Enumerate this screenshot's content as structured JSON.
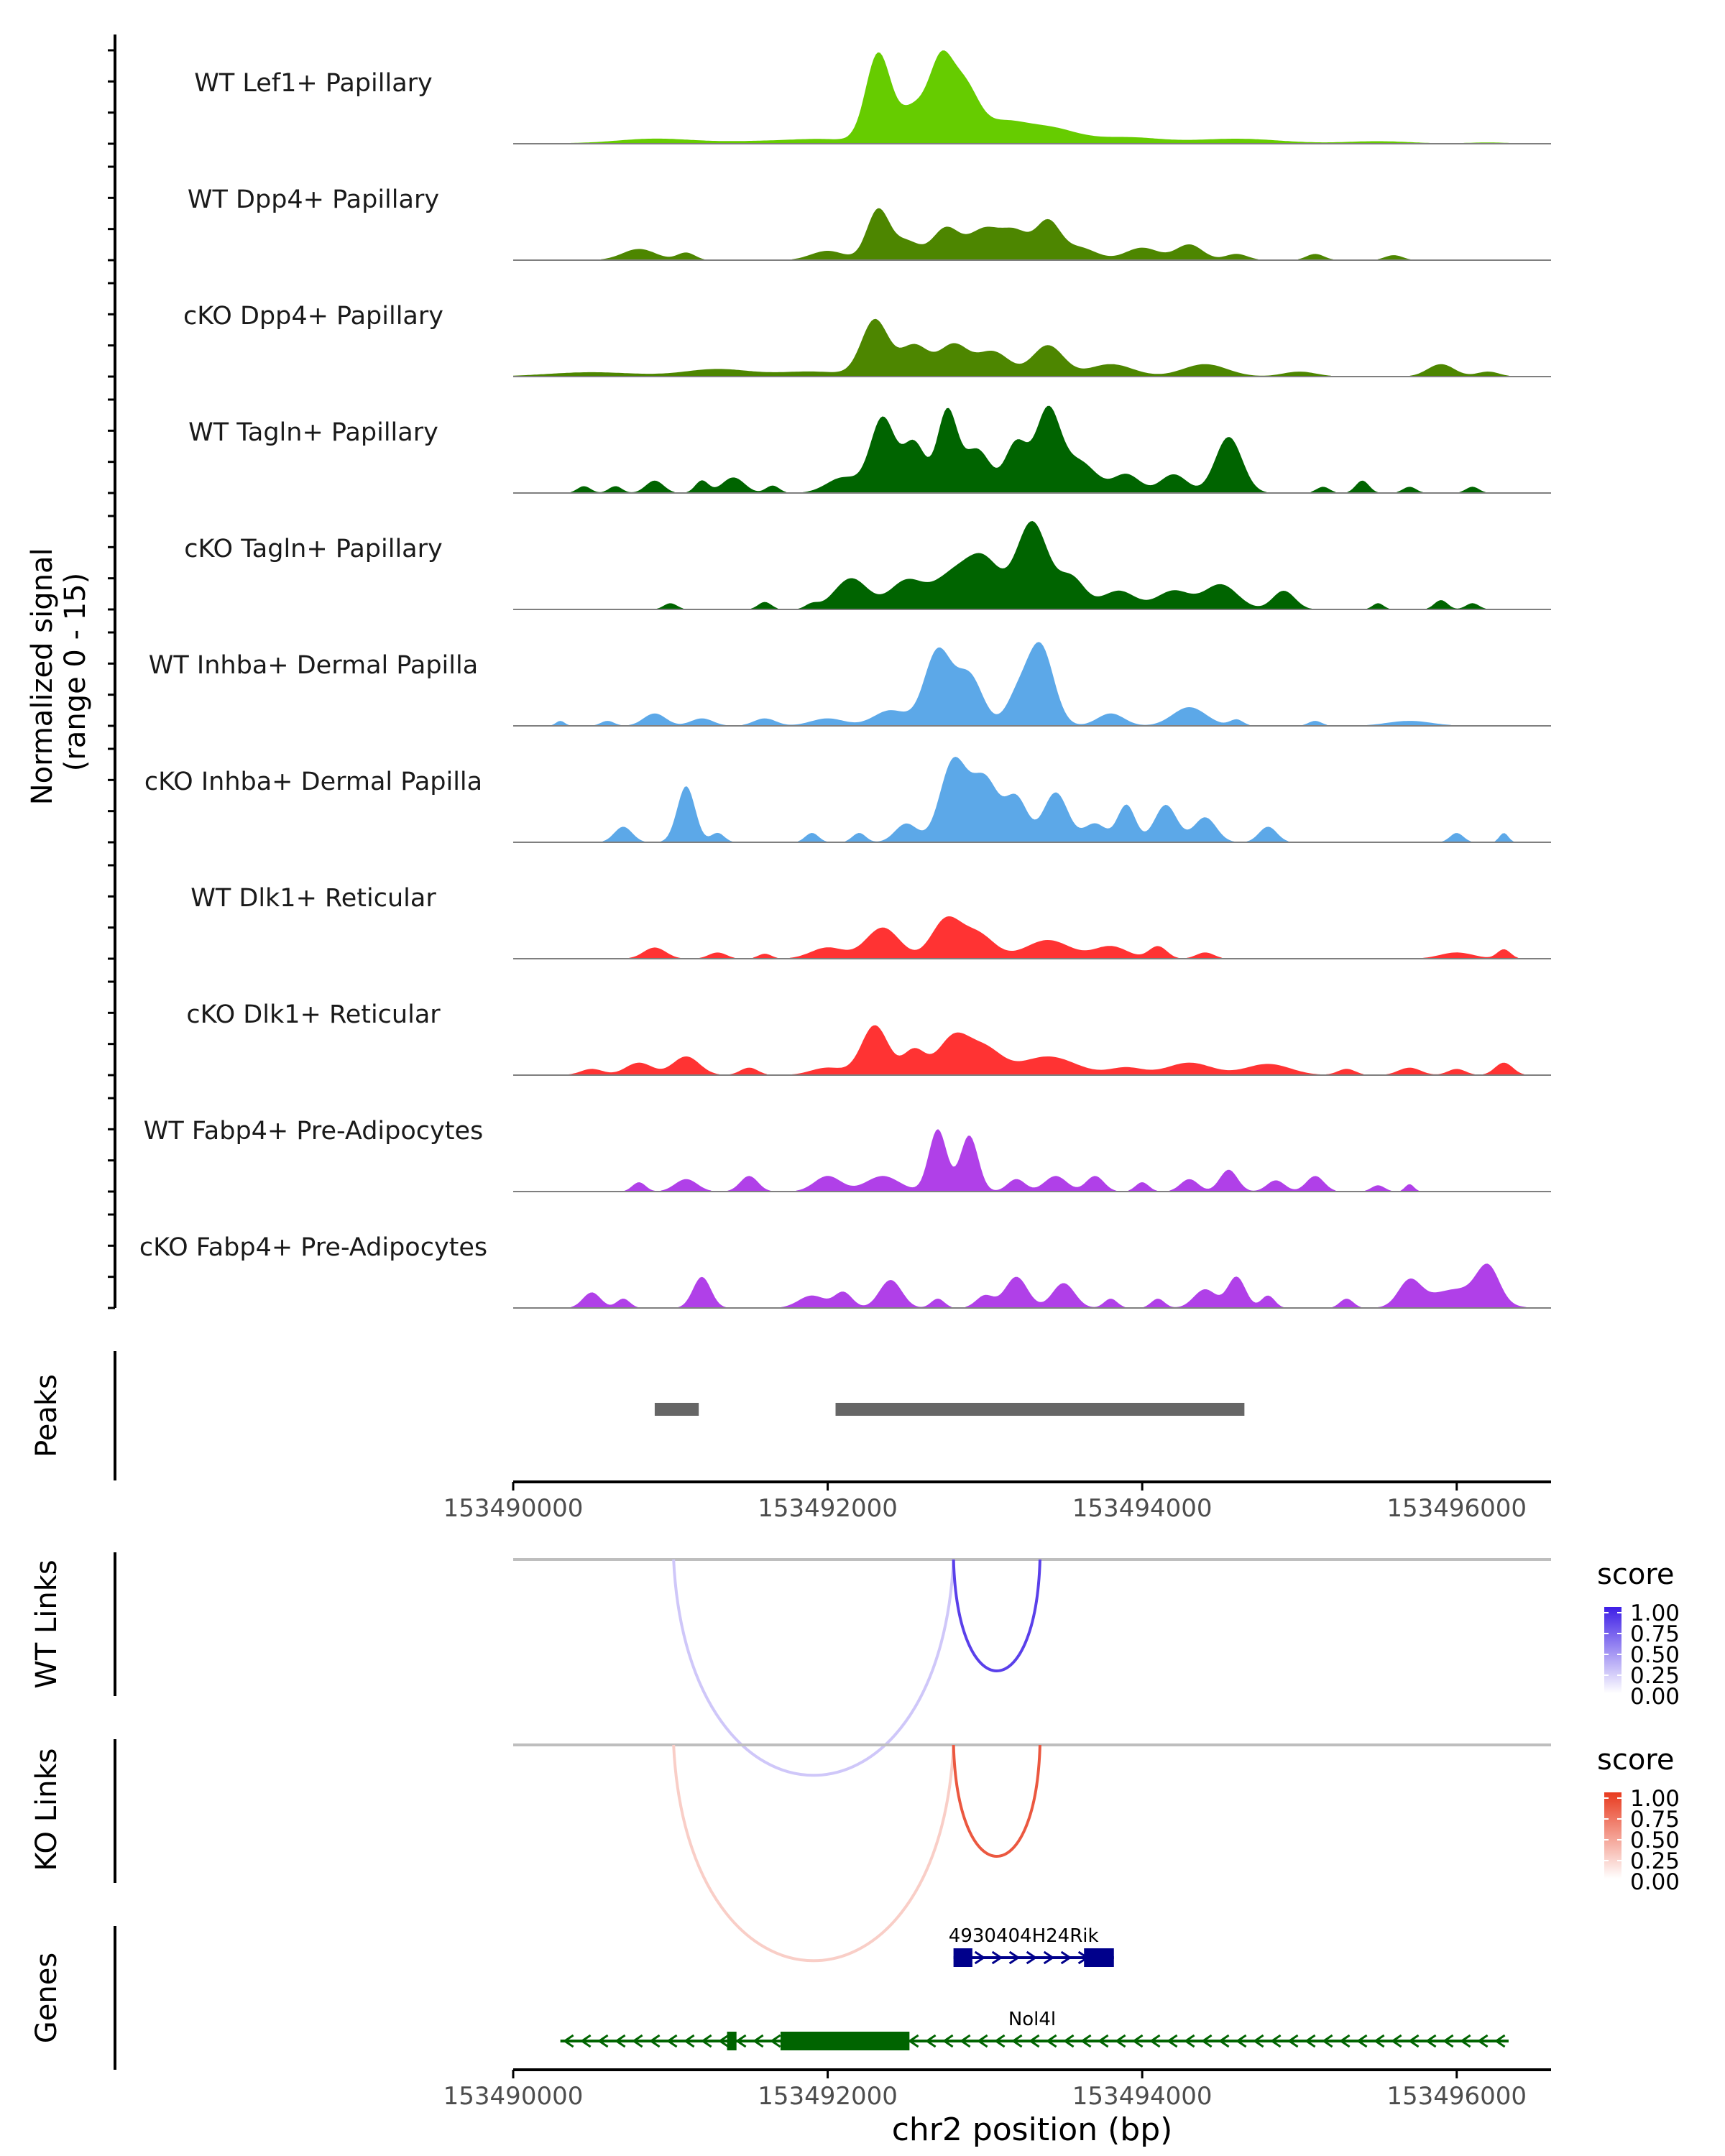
{
  "chart_data": {
    "type": "area",
    "title": "",
    "signal_axis_label_line1": "Normalized signal",
    "signal_axis_label_line2": "(range 0 - 15)",
    "y_range": [
      0,
      15
    ],
    "x_range": [
      153490000,
      153496600
    ],
    "x_ticks": [
      153490000,
      153492000,
      153494000,
      153496000
    ],
    "x_tick_labels": [
      "153490000",
      "153492000",
      "153494000",
      "153496000"
    ],
    "xlabel": "chr2 position (bp)",
    "tracks": [
      {
        "name": "WT Lef1+ Papillary",
        "color": "#66cc00",
        "peaks": [
          [
            153490000,
            0.1,
            400
          ],
          [
            153490900,
            0.8,
            350
          ],
          [
            153491600,
            0.4,
            400
          ],
          [
            153492000,
            0.6,
            300
          ],
          [
            153492320,
            14,
            110
          ],
          [
            153492560,
            6,
            150
          ],
          [
            153492720,
            10,
            100
          ],
          [
            153492860,
            9,
            130
          ],
          [
            153493100,
            3,
            200
          ],
          [
            153493400,
            2.5,
            250
          ],
          [
            153493900,
            1,
            300
          ],
          [
            153494600,
            0.8,
            400
          ],
          [
            153495500,
            0.4,
            300
          ],
          [
            153496200,
            0.2,
            200
          ]
        ]
      },
      {
        "name": "WT Dpp4+ Papillary",
        "color": "#4d8600",
        "peaks": [
          [
            153490800,
            1.8,
            150
          ],
          [
            153491100,
            1.2,
            80
          ],
          [
            153492000,
            1.5,
            150
          ],
          [
            153492320,
            8,
            100
          ],
          [
            153492500,
            3,
            120
          ],
          [
            153492750,
            5,
            120
          ],
          [
            153493000,
            5,
            150
          ],
          [
            153493200,
            4,
            120
          ],
          [
            153493400,
            6,
            110
          ],
          [
            153493600,
            2,
            150
          ],
          [
            153494000,
            2,
            150
          ],
          [
            153494300,
            2.5,
            120
          ],
          [
            153494600,
            1,
            100
          ],
          [
            153495100,
            1,
            80
          ],
          [
            153495600,
            0.8,
            80
          ]
        ]
      },
      {
        "name": "cKO Dpp4+ Papillary",
        "color": "#4d8600",
        "peaks": [
          [
            153490500,
            0.7,
            400
          ],
          [
            153491300,
            1.2,
            300
          ],
          [
            153491900,
            0.8,
            300
          ],
          [
            153492300,
            9,
            120
          ],
          [
            153492550,
            5,
            130
          ],
          [
            153492800,
            5,
            130
          ],
          [
            153493050,
            4,
            150
          ],
          [
            153493400,
            5,
            140
          ],
          [
            153493800,
            2,
            200
          ],
          [
            153494400,
            2,
            200
          ],
          [
            153495000,
            0.8,
            150
          ],
          [
            153495900,
            2,
            120
          ],
          [
            153496200,
            0.8,
            100
          ]
        ]
      },
      {
        "name": "WT Tagln+ Papillary",
        "color": "#006400",
        "peaks": [
          [
            153490450,
            1.1,
            60
          ],
          [
            153490650,
            1.1,
            60
          ],
          [
            153490900,
            2,
            80
          ],
          [
            153491200,
            2,
            60
          ],
          [
            153491400,
            2.5,
            100
          ],
          [
            153491650,
            1.2,
            60
          ],
          [
            153492100,
            2.5,
            150
          ],
          [
            153492350,
            12,
            110
          ],
          [
            153492550,
            8,
            100
          ],
          [
            153492760,
            13,
            90
          ],
          [
            153492950,
            7,
            120
          ],
          [
            153493200,
            8,
            100
          ],
          [
            153493400,
            13,
            110
          ],
          [
            153493600,
            5,
            150
          ],
          [
            153493900,
            3,
            120
          ],
          [
            153494200,
            3,
            120
          ],
          [
            153494550,
            9,
            120
          ],
          [
            153495150,
            1,
            60
          ],
          [
            153495400,
            2,
            60
          ],
          [
            153495700,
            1,
            60
          ],
          [
            153496100,
            1,
            60
          ]
        ]
      },
      {
        "name": "cKO Tagln+ Papillary",
        "color": "#006400",
        "peaks": [
          [
            153491000,
            1,
            60
          ],
          [
            153491600,
            1.2,
            60
          ],
          [
            153491900,
            0.8,
            60
          ],
          [
            153492150,
            5,
            150
          ],
          [
            153492500,
            4.5,
            150
          ],
          [
            153492800,
            5.5,
            180
          ],
          [
            153493000,
            7,
            150
          ],
          [
            153493300,
            14,
            140
          ],
          [
            153493550,
            5,
            120
          ],
          [
            153493850,
            3,
            150
          ],
          [
            153494200,
            3,
            150
          ],
          [
            153494500,
            4,
            150
          ],
          [
            153494900,
            3,
            100
          ],
          [
            153495500,
            1,
            50
          ],
          [
            153495900,
            1.5,
            60
          ],
          [
            153496100,
            1,
            60
          ]
        ]
      },
      {
        "name": "WT Inhba+ Dermal Papilla",
        "color": "#5ca8e8",
        "peaks": [
          [
            153490300,
            0.8,
            40
          ],
          [
            153490600,
            0.8,
            60
          ],
          [
            153490900,
            2,
            100
          ],
          [
            153491200,
            1.2,
            100
          ],
          [
            153491600,
            1.2,
            100
          ],
          [
            153492000,
            1.2,
            150
          ],
          [
            153492400,
            2.5,
            150
          ],
          [
            153492700,
            12,
            120
          ],
          [
            153492900,
            8,
            120
          ],
          [
            153493200,
            4,
            100
          ],
          [
            153493350,
            13,
            120
          ],
          [
            153493800,
            2,
            120
          ],
          [
            153494300,
            3,
            150
          ],
          [
            153494600,
            1,
            60
          ],
          [
            153495100,
            0.8,
            60
          ],
          [
            153495700,
            0.8,
            200
          ]
        ]
      },
      {
        "name": "cKO Inhba+ Dermal Papilla",
        "color": "#5ca8e8",
        "peaks": [
          [
            153490700,
            2.5,
            80
          ],
          [
            153491100,
            9,
            80
          ],
          [
            153491300,
            1.5,
            60
          ],
          [
            153491900,
            1.5,
            60
          ],
          [
            153492200,
            1.5,
            60
          ],
          [
            153492500,
            3,
            100
          ],
          [
            153492800,
            13,
            120
          ],
          [
            153493000,
            10,
            120
          ],
          [
            153493200,
            7,
            100
          ],
          [
            153493450,
            8,
            110
          ],
          [
            153493700,
            3,
            100
          ],
          [
            153493900,
            6,
            80
          ],
          [
            153494150,
            6,
            100
          ],
          [
            153494400,
            4,
            100
          ],
          [
            153494800,
            2.5,
            80
          ],
          [
            153496000,
            1.5,
            60
          ],
          [
            153496300,
            1.5,
            40
          ]
        ]
      },
      {
        "name": "WT Dlk1+ Reticular",
        "color": "#ff3333",
        "peaks": [
          [
            153490900,
            1.8,
            100
          ],
          [
            153491300,
            1,
            80
          ],
          [
            153491600,
            0.8,
            60
          ],
          [
            153492000,
            1.8,
            150
          ],
          [
            153492350,
            5,
            150
          ],
          [
            153492750,
            6,
            130
          ],
          [
            153492950,
            4,
            150
          ],
          [
            153493400,
            3,
            200
          ],
          [
            153493800,
            2,
            150
          ],
          [
            153494100,
            2,
            80
          ],
          [
            153494400,
            1,
            80
          ],
          [
            153496000,
            1,
            150
          ],
          [
            153496300,
            1.5,
            60
          ]
        ]
      },
      {
        "name": "cKO Dlk1+ Reticular",
        "color": "#ff3333",
        "peaks": [
          [
            153490500,
            1,
            100
          ],
          [
            153490800,
            2,
            120
          ],
          [
            153491100,
            3,
            120
          ],
          [
            153491500,
            1.2,
            80
          ],
          [
            153492000,
            1.2,
            150
          ],
          [
            153492300,
            8,
            120
          ],
          [
            153492550,
            4,
            100
          ],
          [
            153492800,
            6,
            140
          ],
          [
            153493000,
            4,
            150
          ],
          [
            153493400,
            3,
            250
          ],
          [
            153493900,
            1.2,
            150
          ],
          [
            153494300,
            2,
            200
          ],
          [
            153494800,
            1.8,
            200
          ],
          [
            153495300,
            1,
            80
          ],
          [
            153495700,
            1.2,
            100
          ],
          [
            153496000,
            1,
            80
          ],
          [
            153496300,
            2,
            80
          ]
        ]
      },
      {
        "name": "WT Fabp4+ Pre-Adipocytes",
        "color": "#b040e8",
        "peaks": [
          [
            153490800,
            1.5,
            60
          ],
          [
            153491100,
            2,
            100
          ],
          [
            153491500,
            2.5,
            80
          ],
          [
            153492000,
            2.5,
            120
          ],
          [
            153492350,
            2.5,
            150
          ],
          [
            153492700,
            10,
            80
          ],
          [
            153492900,
            9,
            80
          ],
          [
            153493200,
            2,
            80
          ],
          [
            153493450,
            2.5,
            100
          ],
          [
            153493700,
            2.5,
            80
          ],
          [
            153494000,
            1.5,
            60
          ],
          [
            153494300,
            2,
            80
          ],
          [
            153494550,
            3.5,
            80
          ],
          [
            153494850,
            1.8,
            80
          ],
          [
            153495100,
            2.5,
            80
          ],
          [
            153495500,
            1,
            60
          ],
          [
            153495700,
            1.2,
            40
          ]
        ]
      },
      {
        "name": "cKO Fabp4+ Pre-Adipocytes",
        "color": "#b040e8",
        "peaks": [
          [
            153490500,
            2.5,
            80
          ],
          [
            153490700,
            1.5,
            60
          ],
          [
            153491200,
            5,
            80
          ],
          [
            153491900,
            2,
            120
          ],
          [
            153492100,
            2.5,
            80
          ],
          [
            153492400,
            4.5,
            100
          ],
          [
            153492700,
            1.5,
            60
          ],
          [
            153493000,
            2,
            80
          ],
          [
            153493200,
            5,
            100
          ],
          [
            153493500,
            4,
            100
          ],
          [
            153493800,
            1.5,
            60
          ],
          [
            153494100,
            1.5,
            60
          ],
          [
            153494400,
            3,
            100
          ],
          [
            153494600,
            5,
            80
          ],
          [
            153494800,
            2,
            60
          ],
          [
            153495300,
            1.5,
            60
          ],
          [
            153495700,
            4,
            100
          ],
          [
            153496000,
            3,
            250
          ],
          [
            153496200,
            5.5,
            100
          ]
        ]
      }
    ],
    "peaks_track": {
      "label": "Peaks",
      "regions": [
        [
          153490900,
          153491180
        ],
        [
          153492050,
          153494650
        ]
      ]
    },
    "links_tracks": [
      {
        "label": "WT Links",
        "legend_title": "score",
        "legend_ticks": [
          "1.00",
          "0.75",
          "0.50",
          "0.25",
          "0.00"
        ],
        "color_high": "#3d1ee6",
        "links": [
          {
            "start": 153491020,
            "end": 153492800,
            "score": 0.25
          },
          {
            "start": 153492800,
            "end": 153493350,
            "score": 0.85
          }
        ]
      },
      {
        "label": "KO Links",
        "legend_title": "score",
        "legend_ticks": [
          "1.00",
          "0.75",
          "0.50",
          "0.25",
          "0.00"
        ],
        "color_high": "#e83a1e",
        "links": [
          {
            "start": 153491020,
            "end": 153492800,
            "score": 0.25
          },
          {
            "start": 153492800,
            "end": 153493350,
            "score": 0.85
          }
        ]
      }
    ],
    "genes_track": {
      "label": "Genes",
      "genes": [
        {
          "name": "4930404H24Rik",
          "start": 153492800,
          "end": 153493820,
          "strand": "+",
          "color": "#00008b",
          "exons": [
            [
              153492800,
              153492920
            ],
            [
              153493630,
              153493820
            ]
          ]
        },
        {
          "name": "Nol4l",
          "start": 153490300,
          "end": 153496330,
          "strand": "-",
          "color": "#006400",
          "exons": [
            [
              153491360,
              153491420
            ],
            [
              153491700,
              153492520
            ]
          ]
        }
      ]
    }
  }
}
